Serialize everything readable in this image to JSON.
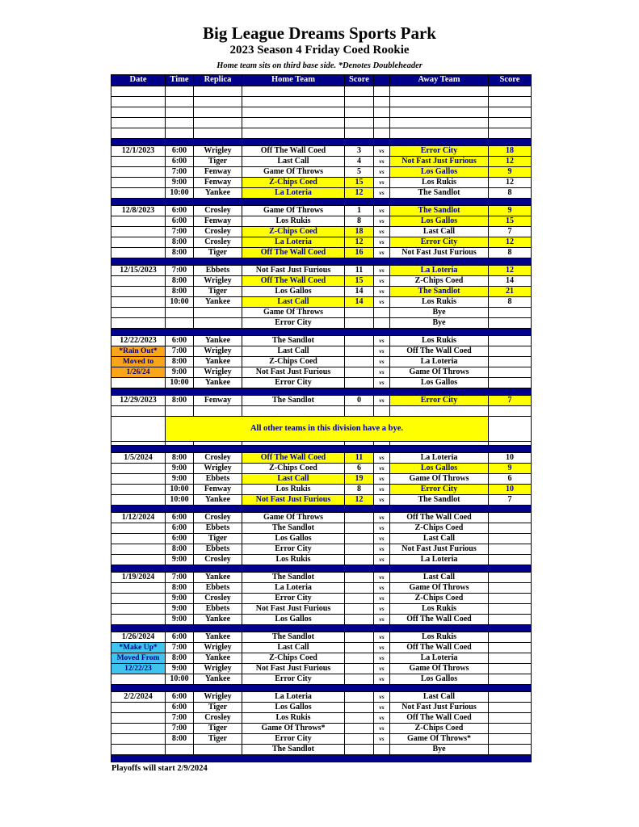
{
  "page": {
    "title": "Big League Dreams Sports Park",
    "subtitle": "2023 Season 4 Friday Coed Rookie",
    "note": "Home team sits on third base side.  *Denotes Doubleheader",
    "footer": "Playoffs will start 2/9/2024"
  },
  "table": {
    "columns": [
      "Date",
      "Time",
      "Replica",
      "Home Team",
      "Score",
      "",
      "Away Team",
      "Score"
    ],
    "vs_label": "vs",
    "banner_text": "All other teams in this division have a bye.",
    "colors": {
      "navy": "#00008B",
      "yellow": "#FFFF00",
      "orange": "#FAA51A",
      "cyan": "#3FC4EE",
      "header_text": "#FFFFFF",
      "highlight_text": "#00008B"
    },
    "layout": [
      {
        "type": "empty_rows",
        "count": 5
      },
      {
        "type": "divider"
      },
      {
        "type": "block",
        "index": 0
      },
      {
        "type": "divider"
      },
      {
        "type": "block",
        "index": 1
      },
      {
        "type": "divider"
      },
      {
        "type": "block",
        "index": 2
      },
      {
        "type": "divider"
      },
      {
        "type": "block",
        "index": 3
      },
      {
        "type": "divider"
      },
      {
        "type": "block",
        "index": 4
      },
      {
        "type": "empty_rows",
        "count": 1
      },
      {
        "type": "banner"
      },
      {
        "type": "short_row"
      },
      {
        "type": "divider"
      },
      {
        "type": "block",
        "index": 5
      },
      {
        "type": "divider"
      },
      {
        "type": "block",
        "index": 6
      },
      {
        "type": "divider"
      },
      {
        "type": "block",
        "index": 7
      },
      {
        "type": "divider"
      },
      {
        "type": "block",
        "index": 8
      },
      {
        "type": "divider"
      },
      {
        "type": "block",
        "index": 9
      },
      {
        "type": "divider"
      }
    ],
    "blocks": [
      {
        "date": "12/1/2023",
        "rows": [
          {
            "time": "6:00",
            "replica": "Wrigley",
            "home": "Off The Wall Coed",
            "home_score": "3",
            "away": "Error City",
            "away_score": "18",
            "hh": false,
            "ah": true
          },
          {
            "time": "6:00",
            "replica": "Tiger",
            "home": "Last Call",
            "home_score": "4",
            "away": "Not Fast Just Furious",
            "away_score": "12",
            "hh": false,
            "ah": true
          },
          {
            "time": "7:00",
            "replica": "Fenway",
            "home": "Game Of Throws",
            "home_score": "5",
            "away": "Los Gallos",
            "away_score": "9",
            "hh": false,
            "ah": true
          },
          {
            "time": "9:00",
            "replica": "Fenway",
            "home": "Z-Chips Coed",
            "home_score": "15",
            "away": "Los Rukis",
            "away_score": "12",
            "hh": true,
            "ah": false
          },
          {
            "time": "10:00",
            "replica": "Yankee",
            "home": "La Loteria",
            "home_score": "12",
            "away": "The Sandlot",
            "away_score": "8",
            "hh": true,
            "ah": false
          }
        ]
      },
      {
        "date": "12/8/2023",
        "rows": [
          {
            "time": "6:00",
            "replica": "Crosley",
            "home": "Game Of Throws",
            "home_score": "1",
            "away": "The Sandlot",
            "away_score": "9",
            "hh": false,
            "ah": true
          },
          {
            "time": "6:00",
            "replica": "Fenway",
            "home": "Los Rukis",
            "home_score": "8",
            "away": "Los Gallos",
            "away_score": "15",
            "hh": false,
            "ah": true
          },
          {
            "time": "7:00",
            "replica": "Crosley",
            "home": "Z-Chips Coed",
            "home_score": "18",
            "away": "Last Call",
            "away_score": "7",
            "hh": true,
            "ah": false
          },
          {
            "time": "8:00",
            "replica": "Crosley",
            "home": "La Loteria",
            "home_score": "12",
            "away": "Error City",
            "away_score": "12",
            "hh": true,
            "ah": true
          },
          {
            "time": "8:00",
            "replica": "Tiger",
            "home": "Off The Wall Coed",
            "home_score": "16",
            "away": "Not Fast Just Furious",
            "away_score": "8",
            "hh": true,
            "ah": false
          }
        ]
      },
      {
        "date": "12/15/2023",
        "rows": [
          {
            "time": "7:00",
            "replica": "Ebbets",
            "home": "Not Fast Just Furious",
            "home_score": "11",
            "away": "La Loteria",
            "away_score": "12",
            "hh": false,
            "ah": true
          },
          {
            "time": "8:00",
            "replica": "Wrigley",
            "home": "Off The Wall Coed",
            "home_score": "15",
            "away": "Z-Chips Coed",
            "away_score": "14",
            "hh": true,
            "ah": false
          },
          {
            "time": "8:00",
            "replica": "Tiger",
            "home": "Los Gallos",
            "home_score": "14",
            "away": "The Sandlot",
            "away_score": "21",
            "hh": false,
            "ah": true
          },
          {
            "time": "10:00",
            "replica": "Yankee",
            "home": "Last Call",
            "home_score": "14",
            "away": "Los Rukis",
            "away_score": "8",
            "hh": true,
            "ah": false
          },
          {
            "time": "",
            "replica": "",
            "home": "Game Of Throws",
            "home_score": "",
            "away": "Bye",
            "away_score": "",
            "hh": false,
            "ah": false,
            "vs": false
          },
          {
            "time": "",
            "replica": "",
            "home": "Error City",
            "home_score": "",
            "away": "Bye",
            "away_score": "",
            "hh": false,
            "ah": false,
            "vs": false
          }
        ]
      },
      {
        "date": "12/22/2023",
        "date_notes": [
          {
            "text": "*Rain Out*",
            "style": "orange"
          },
          {
            "text": "Moved to",
            "style": "orange"
          },
          {
            "text": "1/26/24",
            "style": "orange"
          }
        ],
        "rows": [
          {
            "time": "6:00",
            "replica": "Yankee",
            "home": "The Sandlot",
            "home_score": "",
            "away": "Los Rukis",
            "away_score": "",
            "hh": false,
            "ah": false
          },
          {
            "time": "7:00",
            "replica": "Wrigley",
            "home": "Last Call",
            "home_score": "",
            "away": "Off The Wall Coed",
            "away_score": "",
            "hh": false,
            "ah": false
          },
          {
            "time": "8:00",
            "replica": "Yankee",
            "home": "Z-Chips Coed",
            "home_score": "",
            "away": "La Loteria",
            "away_score": "",
            "hh": false,
            "ah": false
          },
          {
            "time": "9:00",
            "replica": "Wrigley",
            "home": "Not Fast Just Furious",
            "home_score": "",
            "away": "Game Of Throws",
            "away_score": "",
            "hh": false,
            "ah": false
          },
          {
            "time": "10:00",
            "replica": "Yankee",
            "home": "Error City",
            "home_score": "",
            "away": "Los Gallos",
            "away_score": "",
            "hh": false,
            "ah": false
          }
        ]
      },
      {
        "date": "12/29/2023",
        "rows": [
          {
            "time": "8:00",
            "replica": "Fenway",
            "home": "The Sandlot",
            "home_score": "0",
            "away": "Error City",
            "away_score": "7",
            "hh": false,
            "ah": true
          }
        ]
      },
      {
        "date": "1/5/2024",
        "rows": [
          {
            "time": "8:00",
            "replica": "Crosley",
            "home": "Off The Wall Coed",
            "home_score": "11",
            "away": "La Loteria",
            "away_score": "10",
            "hh": true,
            "ah": false
          },
          {
            "time": "9:00",
            "replica": "Wrigley",
            "home": "Z-Chips Coed",
            "home_score": "6",
            "away": "Los Gallos",
            "away_score": "9",
            "hh": false,
            "ah": true
          },
          {
            "time": "9:00",
            "replica": "Ebbets",
            "home": "Last Call",
            "home_score": "19",
            "away": "Game Of Throws",
            "away_score": "6",
            "hh": true,
            "ah": false
          },
          {
            "time": "10:00",
            "replica": "Fenway",
            "home": "Los Rukis",
            "home_score": "8",
            "away": "Error City",
            "away_score": "10",
            "hh": false,
            "ah": true
          },
          {
            "time": "10:00",
            "replica": "Yankee",
            "home": "Not Fast Just Furious",
            "home_score": "12",
            "away": "The Sandlot",
            "away_score": "7",
            "hh": true,
            "ah": false
          }
        ]
      },
      {
        "date": "1/12/2024",
        "rows": [
          {
            "time": "6:00",
            "replica": "Crosley",
            "home": "Game Of Throws",
            "home_score": "",
            "away": "Off The Wall Coed",
            "away_score": "",
            "hh": false,
            "ah": false
          },
          {
            "time": "6:00",
            "replica": "Ebbets",
            "home": "The Sandlot",
            "home_score": "",
            "away": "Z-Chips Coed",
            "away_score": "",
            "hh": false,
            "ah": false
          },
          {
            "time": "6:00",
            "replica": "Tiger",
            "home": "Los Gallos",
            "home_score": "",
            "away": "Last Call",
            "away_score": "",
            "hh": false,
            "ah": false
          },
          {
            "time": "8:00",
            "replica": "Ebbets",
            "home": "Error City",
            "home_score": "",
            "away": "Not Fast Just Furious",
            "away_score": "",
            "hh": false,
            "ah": false
          },
          {
            "time": "9:00",
            "replica": "Crosley",
            "home": "Los Rukis",
            "home_score": "",
            "away": "La Loteria",
            "away_score": "",
            "hh": false,
            "ah": false
          }
        ]
      },
      {
        "date": "1/19/2024",
        "rows": [
          {
            "time": "7:00",
            "replica": "Yankee",
            "home": "The Sandlot",
            "home_score": "",
            "away": "Last Call",
            "away_score": "",
            "hh": false,
            "ah": false
          },
          {
            "time": "8:00",
            "replica": "Ebbets",
            "home": "La Loteria",
            "home_score": "",
            "away": "Game Of Throws",
            "away_score": "",
            "hh": false,
            "ah": false
          },
          {
            "time": "9:00",
            "replica": "Crosley",
            "home": "Error City",
            "home_score": "",
            "away": "Z-Chips Coed",
            "away_score": "",
            "hh": false,
            "ah": false
          },
          {
            "time": "9:00",
            "replica": "Ebbets",
            "home": "Not Fast Just Furious",
            "home_score": "",
            "away": "Los Rukis",
            "away_score": "",
            "hh": false,
            "ah": false
          },
          {
            "time": "9:00",
            "replica": "Yankee",
            "home": "Los Gallos",
            "home_score": "",
            "away": "Off The Wall Coed",
            "away_score": "",
            "hh": false,
            "ah": false
          }
        ]
      },
      {
        "date": "1/26/2024",
        "date_notes": [
          {
            "text": "*Make Up*",
            "style": "cyan"
          },
          {
            "text": "Moved From",
            "style": "cyan"
          },
          {
            "text": "12/22/23",
            "style": "cyan"
          }
        ],
        "rows": [
          {
            "time": "6:00",
            "replica": "Yankee",
            "home": "The Sandlot",
            "home_score": "",
            "away": "Los Rukis",
            "away_score": "",
            "hh": false,
            "ah": false
          },
          {
            "time": "7:00",
            "replica": "Wrigley",
            "home": "Last Call",
            "home_score": "",
            "away": "Off The Wall Coed",
            "away_score": "",
            "hh": false,
            "ah": false
          },
          {
            "time": "8:00",
            "replica": "Yankee",
            "home": "Z-Chips Coed",
            "home_score": "",
            "away": "La Loteria",
            "away_score": "",
            "hh": false,
            "ah": false
          },
          {
            "time": "9:00",
            "replica": "Wrigley",
            "home": "Not Fast Just Furious",
            "home_score": "",
            "away": "Game Of Throws",
            "away_score": "",
            "hh": false,
            "ah": false
          },
          {
            "time": "10:00",
            "replica": "Yankee",
            "home": "Error City",
            "home_score": "",
            "away": "Los Gallos",
            "away_score": "",
            "hh": false,
            "ah": false
          }
        ]
      },
      {
        "date": "2/2/2024",
        "rows": [
          {
            "time": "6:00",
            "replica": "Wrigley",
            "home": "La Loteria",
            "home_score": "",
            "away": "Last Call",
            "away_score": "",
            "hh": false,
            "ah": false
          },
          {
            "time": "6:00",
            "replica": "Tiger",
            "home": "Los Gallos",
            "home_score": "",
            "away": "Not Fast Just Furious",
            "away_score": "",
            "hh": false,
            "ah": false
          },
          {
            "time": "7:00",
            "replica": "Crosley",
            "home": "Los Rukis",
            "home_score": "",
            "away": "Off The Wall Coed",
            "away_score": "",
            "hh": false,
            "ah": false
          },
          {
            "time": "7:00",
            "replica": "Tiger",
            "home": "Game Of Throws*",
            "home_score": "",
            "away": "Z-Chips Coed",
            "away_score": "",
            "hh": false,
            "ah": false
          },
          {
            "time": "8:00",
            "replica": "Tiger",
            "home": "Error City",
            "home_score": "",
            "away": "Game Of Throws*",
            "away_score": "",
            "hh": false,
            "ah": false
          },
          {
            "time": "",
            "replica": "",
            "home": "The Sandlot",
            "home_score": "",
            "away": "Bye",
            "away_score": "",
            "hh": false,
            "ah": false,
            "vs": false
          }
        ]
      }
    ]
  }
}
